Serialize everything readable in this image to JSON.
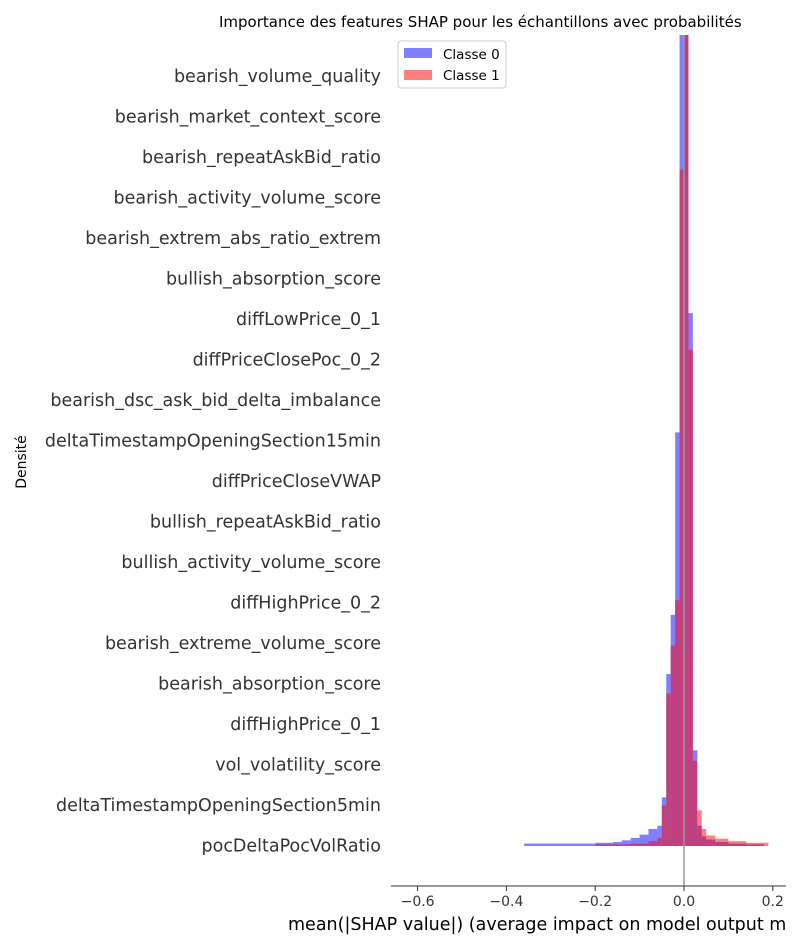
{
  "chart_data": {
    "type": "bar",
    "title": "Importance des features SHAP pour les échantillons avec probabilités",
    "xlabel": "mean(|SHAP value|) (average impact on model output m",
    "ylabel": "Densité",
    "xlim": [
      -0.65,
      0.23
    ],
    "xticks": [
      -0.6,
      -0.4,
      -0.2,
      0.0,
      0.2
    ],
    "xtick_labels": [
      "−0.6",
      "−0.4",
      "−0.2",
      "0.0",
      "0.2"
    ],
    "features": [
      "bearish_volume_quality",
      "bearish_market_context_score",
      "bearish_repeatAskBid_ratio",
      "bearish_activity_volume_score",
      "bearish_extrem_abs_ratio_extrem",
      "bullish_absorption_score",
      "diffLowPrice_0_1",
      "diffPriceClosePoc_0_2",
      "bearish_dsc_ask_bid_delta_imbalance",
      "deltaTimestampOpeningSection15min",
      "diffPriceCloseVWAP",
      "bullish_repeatAskBid_ratio",
      "bullish_activity_volume_score",
      "diffHighPrice_0_2",
      "bearish_extreme_volume_score",
      "bearish_absorption_score",
      "diffHighPrice_0_1",
      "vol_volatility_score",
      "deltaTimestampOpeningSection5min",
      "pocDeltaPocVolRatio"
    ],
    "legend": {
      "placement": "top-left",
      "entries": [
        {
          "name": "Classe 0",
          "color": "#0000ff"
        },
        {
          "name": "Classe 1",
          "color": "#ff0000"
        }
      ]
    },
    "series": [
      {
        "name": "Classe 0",
        "color": "#0000ff",
        "opacity": 0.5,
        "bins": [
          {
            "x0": -0.36,
            "x1": -0.2,
            "y": 0.003
          },
          {
            "x0": -0.2,
            "x1": -0.16,
            "y": 0.004
          },
          {
            "x0": -0.16,
            "x1": -0.14,
            "y": 0.005
          },
          {
            "x0": -0.14,
            "x1": -0.12,
            "y": 0.007
          },
          {
            "x0": -0.12,
            "x1": -0.1,
            "y": 0.01
          },
          {
            "x0": -0.1,
            "x1": -0.08,
            "y": 0.014
          },
          {
            "x0": -0.08,
            "x1": -0.06,
            "y": 0.021
          },
          {
            "x0": -0.06,
            "x1": -0.05,
            "y": 0.025
          },
          {
            "x0": -0.05,
            "x1": -0.04,
            "y": 0.06
          },
          {
            "x0": -0.04,
            "x1": -0.03,
            "y": 0.212
          },
          {
            "x0": -0.03,
            "x1": -0.02,
            "y": 0.285
          },
          {
            "x0": -0.02,
            "x1": -0.01,
            "y": 0.51
          },
          {
            "x0": -0.01,
            "x1": 0.0,
            "y": 1.0
          },
          {
            "x0": 0.0,
            "x1": 0.01,
            "y": 1.0
          },
          {
            "x0": 0.01,
            "x1": 0.02,
            "y": 0.657
          },
          {
            "x0": 0.02,
            "x1": 0.03,
            "y": 0.118
          },
          {
            "x0": 0.03,
            "x1": 0.04,
            "y": 0.025
          },
          {
            "x0": 0.04,
            "x1": 0.05,
            "y": 0.012
          },
          {
            "x0": 0.05,
            "x1": 0.07,
            "y": 0.008
          },
          {
            "x0": 0.07,
            "x1": 0.1,
            "y": 0.005
          },
          {
            "x0": 0.1,
            "x1": 0.14,
            "y": 0.003
          },
          {
            "x0": 0.14,
            "x1": 0.18,
            "y": 0.002
          }
        ]
      },
      {
        "name": "Classe 1",
        "color": "#ff0000",
        "opacity": 0.5,
        "bins": [
          {
            "x0": -0.2,
            "x1": -0.12,
            "y": 0.002
          },
          {
            "x0": -0.12,
            "x1": -0.08,
            "y": 0.003
          },
          {
            "x0": -0.08,
            "x1": -0.06,
            "y": 0.006
          },
          {
            "x0": -0.06,
            "x1": -0.05,
            "y": 0.01
          },
          {
            "x0": -0.05,
            "x1": -0.04,
            "y": 0.05
          },
          {
            "x0": -0.04,
            "x1": -0.03,
            "y": 0.188
          },
          {
            "x0": -0.03,
            "x1": -0.02,
            "y": 0.247
          },
          {
            "x0": -0.02,
            "x1": -0.01,
            "y": 0.303
          },
          {
            "x0": -0.01,
            "x1": 0.0,
            "y": 0.834
          },
          {
            "x0": 0.0,
            "x1": 0.01,
            "y": 1.0
          },
          {
            "x0": 0.01,
            "x1": 0.02,
            "y": 0.612
          },
          {
            "x0": 0.02,
            "x1": 0.03,
            "y": 0.105
          },
          {
            "x0": 0.03,
            "x1": 0.04,
            "y": 0.044
          },
          {
            "x0": 0.04,
            "x1": 0.05,
            "y": 0.021
          },
          {
            "x0": 0.05,
            "x1": 0.07,
            "y": 0.013
          },
          {
            "x0": 0.07,
            "x1": 0.1,
            "y": 0.009
          },
          {
            "x0": 0.1,
            "x1": 0.14,
            "y": 0.006
          },
          {
            "x0": 0.14,
            "x1": 0.19,
            "y": 0.004
          }
        ]
      }
    ],
    "reference_line": {
      "x": 0.0,
      "color": "#999999"
    }
  }
}
